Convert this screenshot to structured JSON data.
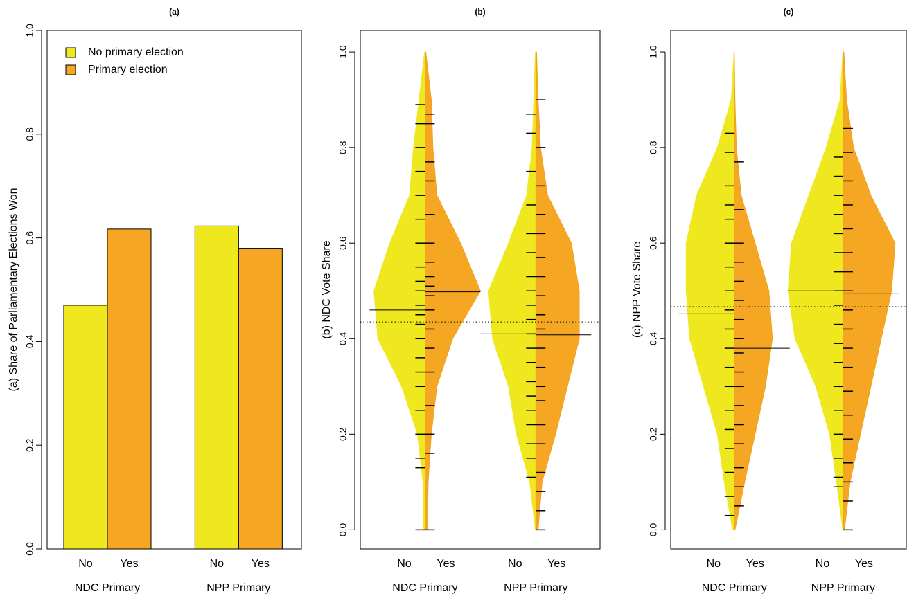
{
  "chart_data": [
    {
      "type": "bar",
      "title": "(a)",
      "ylabel": "(a) Share of Parliamentary Elections Won",
      "categories": [
        "NDC Primary",
        "NPP Primary"
      ],
      "subcategories": [
        "No",
        "Yes"
      ],
      "series": [
        {
          "name": "No primary election",
          "color": "#f0e81e",
          "values": [
            0.47,
            0.623
          ]
        },
        {
          "name": "Primary election",
          "color": "#f5a623",
          "values": [
            0.617,
            0.58
          ]
        }
      ],
      "ylim": [
        0,
        1
      ],
      "yticks": [
        {
          "value": 0,
          "label": "0.0"
        },
        0.2,
        0.4,
        0.6,
        0.8,
        {
          "value": 1,
          "label": "1.0"
        }
      ],
      "legend": "topleft"
    },
    {
      "type": "beanplot",
      "title": "(b)",
      "ylabel": "(b) NDC Vote Share",
      "categories": [
        "NDC Primary",
        "NPP Primary"
      ],
      "subcategories": [
        "No",
        "Yes"
      ],
      "colors": [
        "#f0e81e",
        "#f5a623"
      ],
      "overall_mean": 0.435,
      "density_y": [
        0,
        0.1,
        0.2,
        0.3,
        0.4,
        0.5,
        0.6,
        0.7,
        0.8,
        0.9,
        1.0
      ],
      "beans": [
        [
          {
            "mean": 0.46,
            "density": [
              2,
              3,
              10,
              30,
              60,
              65,
              45,
              20,
              15,
              8,
              1
            ],
            "rug": [
              0.0,
              0.13,
              0.15,
              0.2,
              0.25,
              0.3,
              0.33,
              0.36,
              0.4,
              0.43,
              0.45,
              0.47,
              0.5,
              0.52,
              0.55,
              0.6,
              0.65,
              0.7,
              0.75,
              0.8,
              0.85,
              0.89
            ]
          },
          {
            "mean": 0.498,
            "density": [
              3,
              4,
              8,
              15,
              35,
              70,
              45,
              15,
              10,
              8,
              1
            ],
            "rug": [
              0.0,
              0.16,
              0.2,
              0.26,
              0.33,
              0.38,
              0.42,
              0.46,
              0.49,
              0.51,
              0.53,
              0.56,
              0.6,
              0.66,
              0.73,
              0.77,
              0.85,
              0.87
            ]
          }
        ],
        [
          {
            "mean": 0.41,
            "density": [
              1,
              8,
              25,
              35,
              55,
              60,
              35,
              12,
              5,
              3,
              1
            ],
            "rug": [
              0.11,
              0.15,
              0.18,
              0.22,
              0.25,
              0.28,
              0.31,
              0.35,
              0.38,
              0.41,
              0.44,
              0.47,
              0.5,
              0.53,
              0.58,
              0.62,
              0.68,
              0.75,
              0.83,
              0.87
            ]
          },
          {
            "mean": 0.408,
            "density": [
              3,
              8,
              25,
              40,
              55,
              55,
              45,
              15,
              6,
              3,
              1
            ],
            "rug": [
              0.0,
              0.04,
              0.08,
              0.12,
              0.18,
              0.22,
              0.27,
              0.3,
              0.34,
              0.38,
              0.42,
              0.45,
              0.49,
              0.53,
              0.57,
              0.62,
              0.66,
              0.72,
              0.8,
              0.9
            ]
          }
        ]
      ],
      "ylim": [
        -0.04,
        1.045
      ],
      "yticks": [
        {
          "value": 0,
          "label": "0.0"
        },
        0.2,
        0.4,
        0.6,
        0.8,
        {
          "value": 1,
          "label": "1.0"
        }
      ]
    },
    {
      "type": "beanplot",
      "title": "(c)",
      "ylabel": "(c) NPP Vote Share",
      "categories": [
        "NDC Primary",
        "NPP Primary"
      ],
      "subcategories": [
        "No",
        "Yes"
      ],
      "colors": [
        "#f0e81e",
        "#f5a623"
      ],
      "overall_mean": 0.467,
      "density_y": [
        0,
        0.1,
        0.2,
        0.3,
        0.4,
        0.5,
        0.6,
        0.7,
        0.8,
        0.9,
        1.0
      ],
      "beans": [
        [
          {
            "mean": 0.452,
            "density": [
              3,
              15,
              25,
              45,
              65,
              70,
              70,
              55,
              25,
              5,
              1
            ],
            "rug": [
              0.03,
              0.07,
              0.12,
              0.17,
              0.21,
              0.25,
              0.3,
              0.34,
              0.38,
              0.42,
              0.46,
              0.5,
              0.55,
              0.6,
              0.65,
              0.68,
              0.72,
              0.79,
              0.83
            ]
          },
          {
            "mean": 0.38,
            "density": [
              1,
              15,
              30,
              45,
              55,
              50,
              30,
              10,
              3,
              1,
              0
            ],
            "rug": [
              0.05,
              0.09,
              0.13,
              0.18,
              0.22,
              0.26,
              0.3,
              0.33,
              0.37,
              0.4,
              0.44,
              0.48,
              0.52,
              0.56,
              0.6,
              0.67,
              0.77
            ]
          }
        ],
        [
          {
            "mean": 0.5,
            "density": [
              1,
              10,
              20,
              40,
              70,
              80,
              75,
              50,
              25,
              5,
              1
            ],
            "rug": [
              0.09,
              0.11,
              0.15,
              0.2,
              0.25,
              0.3,
              0.35,
              0.39,
              0.43,
              0.47,
              0.5,
              0.54,
              0.58,
              0.62,
              0.66,
              0.7,
              0.74,
              0.78
            ]
          },
          {
            "mean": 0.494,
            "density": [
              2,
              10,
              25,
              40,
              55,
              70,
              75,
              40,
              15,
              5,
              1
            ],
            "rug": [
              0.0,
              0.06,
              0.1,
              0.14,
              0.19,
              0.24,
              0.29,
              0.34,
              0.38,
              0.42,
              0.46,
              0.5,
              0.54,
              0.58,
              0.63,
              0.68,
              0.73,
              0.79,
              0.84
            ]
          }
        ]
      ],
      "ylim": [
        -0.04,
        1.045
      ],
      "yticks": [
        {
          "value": 0,
          "label": "0.0"
        },
        0.2,
        0.4,
        0.6,
        0.8,
        {
          "value": 1,
          "label": "1.0"
        }
      ]
    }
  ]
}
